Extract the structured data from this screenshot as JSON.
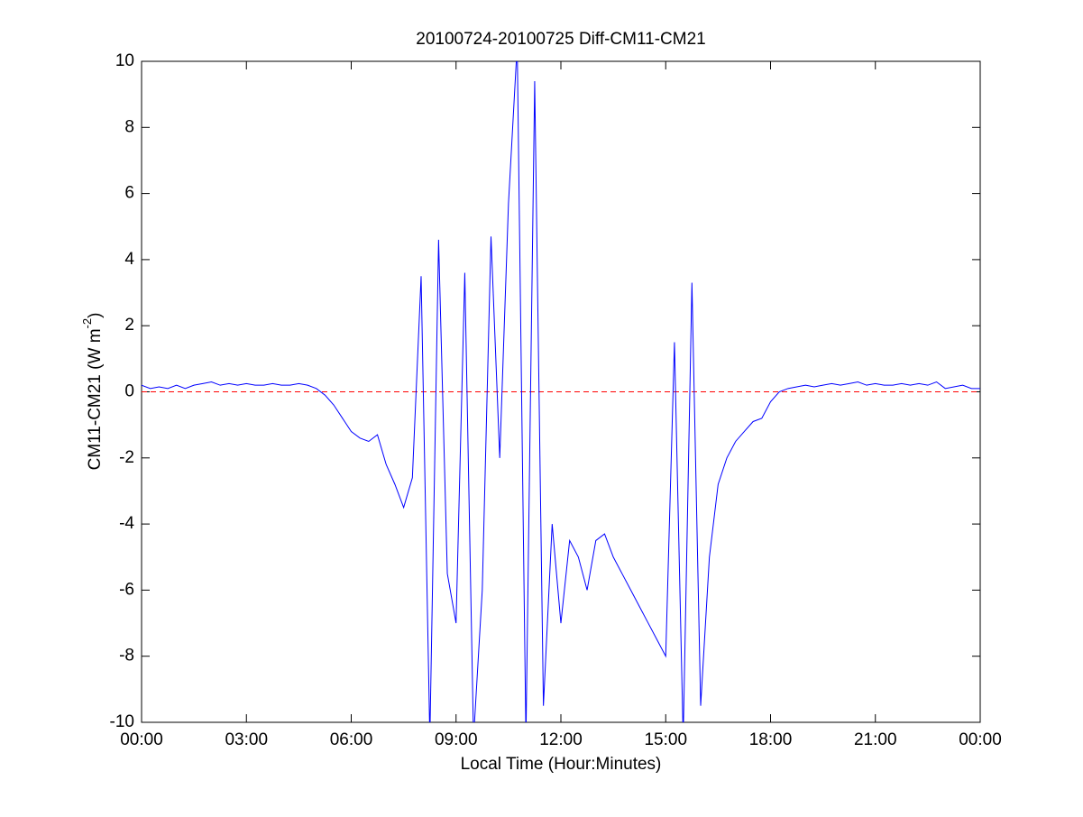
{
  "chart_data": {
    "type": "line",
    "title": "20100724-20100725 Diff-CM11-CM21",
    "xlabel": "Local Time (Hour:Minutes)",
    "ylabel": [
      "CM11-CM21 (W m",
      "-2",
      ")"
    ],
    "x": [
      0,
      0.25,
      0.5,
      0.75,
      1,
      1.25,
      1.5,
      1.75,
      2,
      2.25,
      2.5,
      2.75,
      3,
      3.25,
      3.5,
      3.75,
      4,
      4.25,
      4.5,
      4.75,
      5,
      5.25,
      5.5,
      5.75,
      6,
      6.25,
      6.5,
      6.75,
      7,
      7.25,
      7.5,
      7.75,
      8,
      8.25,
      8.5,
      8.75,
      9,
      9.25,
      9.5,
      9.75,
      10,
      10.25,
      10.5,
      10.75,
      11,
      11.25,
      11.5,
      11.75,
      12,
      12.25,
      12.5,
      12.75,
      13,
      13.25,
      13.5,
      13.75,
      14,
      14.25,
      14.5,
      14.75,
      15,
      15.25,
      15.5,
      15.75,
      16,
      16.25,
      16.5,
      16.75,
      17,
      17.25,
      17.5,
      17.75,
      18,
      18.25,
      18.5,
      18.75,
      19,
      19.25,
      19.5,
      19.75,
      20,
      20.25,
      20.5,
      20.75,
      21,
      21.25,
      21.5,
      21.75,
      22,
      22.25,
      22.5,
      22.75,
      23,
      23.25,
      23.5,
      23.75,
      24
    ],
    "series": [
      {
        "color": "#0000ff",
        "values": [
          0.2,
          0.1,
          0.15,
          0.1,
          0.2,
          0.1,
          0.2,
          0.25,
          0.3,
          0.2,
          0.25,
          0.2,
          0.25,
          0.2,
          0.2,
          0.25,
          0.2,
          0.2,
          0.25,
          0.2,
          0.1,
          -0.1,
          -0.4,
          -0.8,
          -1.2,
          -1.4,
          -1.5,
          -1.3,
          -2.2,
          -2.8,
          -3.5,
          -2.6,
          3.5,
          -10.5,
          4.6,
          -5.5,
          -7,
          3.6,
          -10.5,
          -6,
          4.7,
          -2,
          5.7,
          10.5,
          -10.5,
          9.4,
          -9.5,
          -4,
          -7,
          -4.5,
          -5,
          -6,
          -4.5,
          -4.3,
          -5,
          -5.5,
          -6,
          -6.5,
          -7,
          -7.5,
          -8,
          1.5,
          -10.5,
          3.3,
          -9.5,
          -5,
          -2.8,
          -2,
          -1.5,
          -1.2,
          -0.9,
          -0.8,
          -0.3,
          0,
          0.1,
          0.15,
          0.2,
          0.15,
          0.2,
          0.25,
          0.2,
          0.25,
          0.3,
          0.2,
          0.25,
          0.2,
          0.2,
          0.25,
          0.2,
          0.25,
          0.2,
          0.3,
          0.1,
          0.15,
          0.2,
          0.1,
          0.1
        ]
      }
    ],
    "reference_line": {
      "value": 0,
      "color": "#ff0000"
    },
    "xlim": [
      0,
      24
    ],
    "xticks": [
      {
        "value": 0,
        "label": "00:00"
      },
      {
        "value": 3,
        "label": "03:00"
      },
      {
        "value": 6,
        "label": "06:00"
      },
      {
        "value": 9,
        "label": "09:00"
      },
      {
        "value": 12,
        "label": "12:00"
      },
      {
        "value": 15,
        "label": "15:00"
      },
      {
        "value": 18,
        "label": "18:00"
      },
      {
        "value": 21,
        "label": "21:00"
      },
      {
        "value": 24,
        "label": "00:00"
      }
    ],
    "ylim": [
      -10,
      10
    ],
    "yticks": [
      -10,
      -8,
      -6,
      -4,
      -2,
      0,
      2,
      4,
      6,
      8,
      10
    ]
  }
}
